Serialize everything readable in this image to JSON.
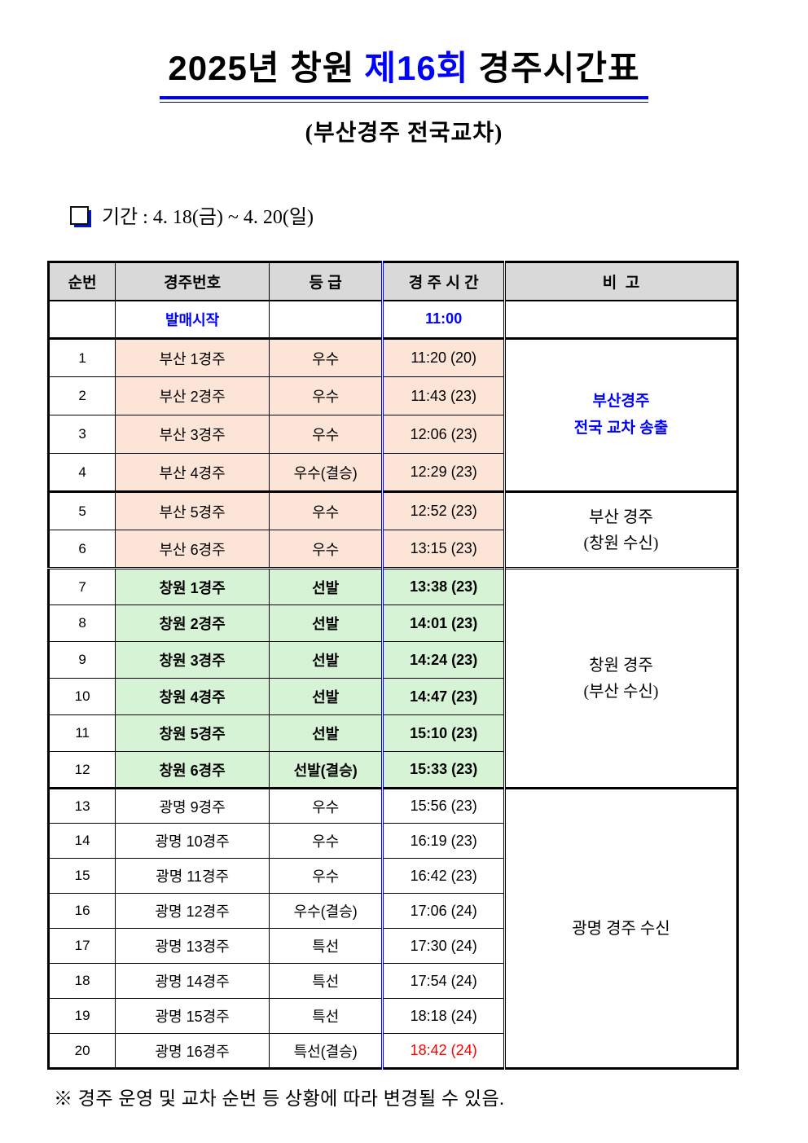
{
  "page": {
    "title_prefix": "2025년 창원",
    "title_highlight": "제16회",
    "title_suffix": "경주시간표",
    "subtitle": "(부산경주 전국교차)",
    "period": "기간 : 4. 18(금) ~ 4. 20(일)",
    "footnote": "※ 경주 운영 및 교차 순번 등 상황에 따라 변경될 수 있음."
  },
  "colors": {
    "accent_blue": "#0000ff",
    "alert_red": "#ff0000",
    "header_bg": "#d9d9d9",
    "busan_row_bg": "#fce4d6",
    "changwon_row_bg": "#d6f3d6"
  },
  "table": {
    "headers": [
      "순번",
      "경주번호",
      "등 급",
      "경 주 시 간",
      "비  고"
    ],
    "presale": {
      "label": "발매시작",
      "time": "11:00"
    },
    "rows": [
      {
        "no": "1",
        "race": "부산 1경주",
        "grade": "우수",
        "time": "11:20 (20)",
        "venue": "busan",
        "sep": "thick"
      },
      {
        "no": "2",
        "race": "부산 2경주",
        "grade": "우수",
        "time": "11:43 (23)",
        "venue": "busan"
      },
      {
        "no": "3",
        "race": "부산 3경주",
        "grade": "우수",
        "time": "12:06 (23)",
        "venue": "busan"
      },
      {
        "no": "4",
        "race": "부산 4경주",
        "grade": "우수(결승)",
        "time": "12:29 (23)",
        "venue": "busan"
      },
      {
        "no": "5",
        "race": "부산 5경주",
        "grade": "우수",
        "time": "12:52 (23)",
        "venue": "busan",
        "sep": "thick"
      },
      {
        "no": "6",
        "race": "부산 6경주",
        "grade": "우수",
        "time": "13:15 (23)",
        "venue": "busan"
      },
      {
        "no": "7",
        "race": "창원 1경주",
        "grade": "선발",
        "time": "13:38 (23)",
        "venue": "changwon",
        "bold": true,
        "sep": "double"
      },
      {
        "no": "8",
        "race": "창원 2경주",
        "grade": "선발",
        "time": "14:01 (23)",
        "venue": "changwon",
        "bold": true
      },
      {
        "no": "9",
        "race": "창원 3경주",
        "grade": "선발",
        "time": "14:24 (23)",
        "venue": "changwon",
        "bold": true
      },
      {
        "no": "10",
        "race": "창원 4경주",
        "grade": "선발",
        "time": "14:47 (23)",
        "venue": "changwon",
        "bold": true
      },
      {
        "no": "11",
        "race": "창원 5경주",
        "grade": "선발",
        "time": "15:10 (23)",
        "venue": "changwon",
        "bold": true
      },
      {
        "no": "12",
        "race": "창원 6경주",
        "grade": "선발(결승)",
        "time": "15:33 (23)",
        "venue": "changwon",
        "bold": true
      },
      {
        "no": "13",
        "race": "광명 9경주",
        "grade": "우수",
        "time": "15:56 (23)",
        "venue": "gwangmyeong",
        "sep": "thick"
      },
      {
        "no": "14",
        "race": "광명 10경주",
        "grade": "우수",
        "time": "16:19 (23)",
        "venue": "gwangmyeong"
      },
      {
        "no": "15",
        "race": "광명 11경주",
        "grade": "우수",
        "time": "16:42 (23)",
        "venue": "gwangmyeong"
      },
      {
        "no": "16",
        "race": "광명 12경주",
        "grade": "우수(결승)",
        "time": "17:06 (24)",
        "venue": "gwangmyeong"
      },
      {
        "no": "17",
        "race": "광명 13경주",
        "grade": "특선",
        "time": "17:30 (24)",
        "venue": "gwangmyeong"
      },
      {
        "no": "18",
        "race": "광명 14경주",
        "grade": "특선",
        "time": "17:54 (24)",
        "venue": "gwangmyeong"
      },
      {
        "no": "19",
        "race": "광명 15경주",
        "grade": "특선",
        "time": "18:18 (24)",
        "venue": "gwangmyeong"
      },
      {
        "no": "20",
        "race": "광명 16경주",
        "grade": "특선(결승)",
        "time": "18:42 (24)",
        "venue": "gwangmyeong",
        "time_red": true
      }
    ],
    "notes": [
      {
        "start": 1,
        "span": 4,
        "style": "note-blue",
        "lines": [
          "부산경주",
          "전국 교차 송출"
        ]
      },
      {
        "start": 5,
        "span": 2,
        "style": "",
        "lines": [
          "부산 경주",
          "(창원 수신)"
        ]
      },
      {
        "start": 7,
        "span": 6,
        "style": "",
        "lines": [
          "창원 경주",
          "(부산 수신)"
        ]
      },
      {
        "start": 13,
        "span": 8,
        "style": "",
        "lines": [
          "광명 경주 수신"
        ]
      }
    ]
  }
}
